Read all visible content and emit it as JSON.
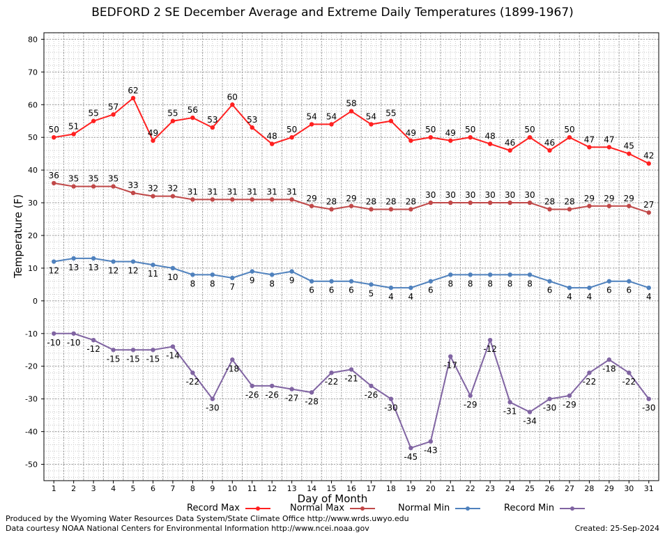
{
  "chart_data": {
    "type": "line",
    "title": "BEDFORD 2 SE December Average and Extreme Daily Temperatures (1899-1967)",
    "xlabel": "Day of Month",
    "ylabel": "Temperature (F)",
    "ylim": [
      -55,
      82
    ],
    "yticks": [
      80,
      70,
      60,
      50,
      40,
      30,
      20,
      10,
      0,
      -10,
      -20,
      -30,
      -40,
      -50
    ],
    "x": [
      1,
      2,
      3,
      4,
      5,
      6,
      7,
      8,
      9,
      10,
      11,
      12,
      13,
      14,
      15,
      16,
      17,
      18,
      19,
      20,
      21,
      22,
      23,
      24,
      25,
      26,
      27,
      28,
      29,
      30,
      31
    ],
    "grid": true,
    "legend_placement": "bottom",
    "series": [
      {
        "name": "Record Max",
        "color": "#ff2020",
        "values": [
          50,
          51,
          55,
          57,
          62,
          49,
          55,
          56,
          53,
          60,
          53,
          48,
          50,
          54,
          54,
          58,
          54,
          55,
          49,
          50,
          49,
          50,
          48,
          46,
          50,
          46,
          50,
          47,
          47,
          45,
          42
        ]
      },
      {
        "name": "Normal Max",
        "color": "#c04848",
        "values": [
          36,
          35,
          35,
          35,
          33,
          32,
          32,
          31,
          31,
          31,
          31,
          31,
          31,
          29,
          28,
          29,
          28,
          28,
          28,
          30,
          30,
          30,
          30,
          30,
          30,
          28,
          28,
          29,
          29,
          29,
          27
        ]
      },
      {
        "name": "Normal Min",
        "color": "#4f81bd",
        "values": [
          12,
          13,
          13,
          12,
          12,
          11,
          10,
          8,
          8,
          7,
          9,
          8,
          9,
          6,
          6,
          6,
          5,
          4,
          4,
          6,
          8,
          8,
          8,
          8,
          8,
          6,
          4,
          4,
          6,
          6,
          4
        ]
      },
      {
        "name": "Record Min",
        "color": "#8064a2",
        "values": [
          -10,
          -10,
          -12,
          -15,
          -15,
          -15,
          -14,
          -22,
          -30,
          -18,
          -26,
          -26,
          -27,
          -28,
          -22,
          -21,
          -26,
          -30,
          -45,
          -43,
          -17,
          -29,
          -12,
          -31,
          -34,
          -30,
          -29,
          -22,
          -18,
          -22,
          -30
        ]
      }
    ]
  },
  "footer": {
    "left_line1": "Produced by the Wyoming Water Resources Data System/State Climate Office http://www.wrds.uwyo.edu",
    "left_line2": "Data courtesy NOAA National Centers for Environmental Information http://www.ncei.noaa.gov",
    "created": "Created: 25-Sep-2024"
  }
}
